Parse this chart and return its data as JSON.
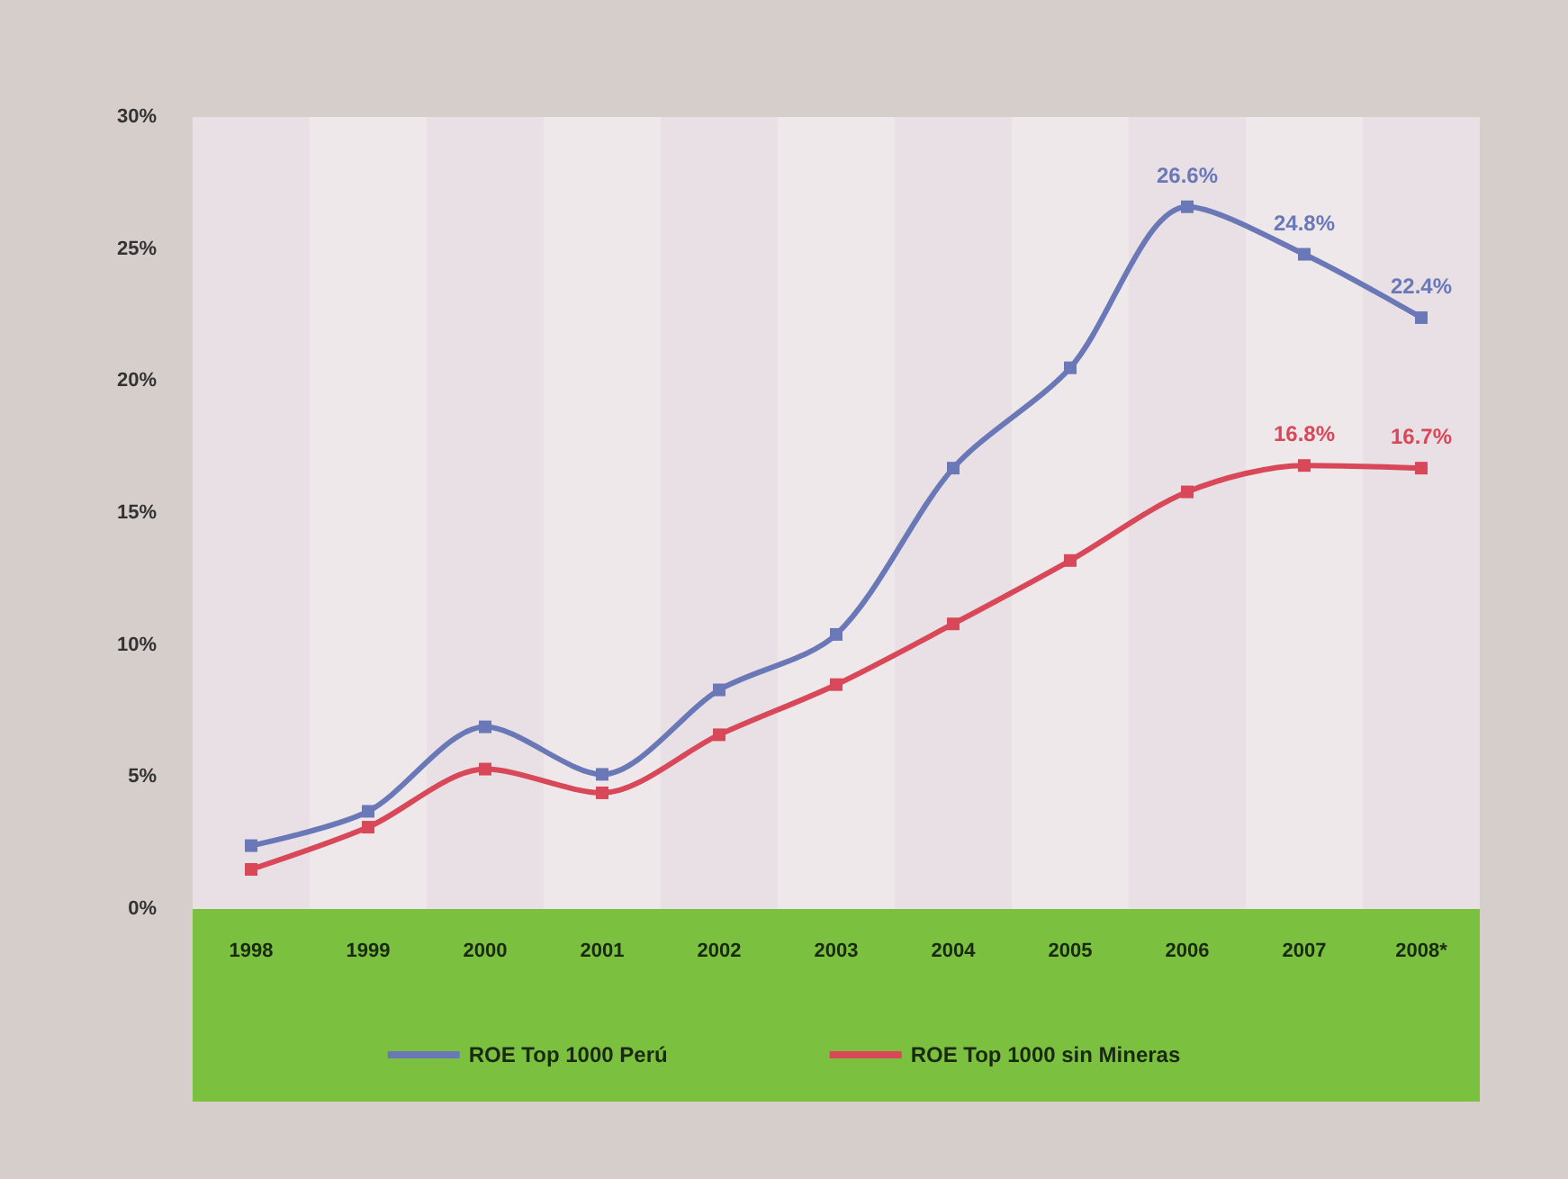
{
  "chart_data": {
    "type": "line",
    "categories": [
      "1998",
      "1999",
      "2000",
      "2001",
      "2002",
      "2003",
      "2004",
      "2005",
      "2006",
      "2007",
      "2008*"
    ],
    "ylim": [
      0,
      30
    ],
    "yticks": [
      {
        "value": 0,
        "label": "0%"
      },
      {
        "value": 5,
        "label": "5%"
      },
      {
        "value": 10,
        "label": "10%"
      },
      {
        "value": 15,
        "label": "15%"
      },
      {
        "value": 20,
        "label": "20%"
      },
      {
        "value": 25,
        "label": "25%"
      },
      {
        "value": 30,
        "label": "30%"
      }
    ],
    "series": [
      {
        "name": "ROE Top 1000 Perú",
        "color": "#6a78b8",
        "values": [
          2.4,
          3.7,
          6.9,
          5.1,
          8.3,
          10.4,
          16.7,
          20.5,
          26.6,
          24.8,
          22.4
        ],
        "value_labels": [
          null,
          null,
          null,
          null,
          null,
          null,
          null,
          null,
          "26.6%",
          "24.8%",
          "22.4%"
        ]
      },
      {
        "name": "ROE Top 1000 sin Mineras",
        "color": "#d84858",
        "values": [
          1.5,
          3.1,
          5.3,
          4.4,
          6.6,
          8.5,
          10.8,
          13.2,
          15.8,
          16.8,
          16.7
        ],
        "value_labels": [
          null,
          null,
          null,
          null,
          null,
          null,
          null,
          null,
          null,
          "16.8%",
          "16.7%"
        ]
      }
    ],
    "marker": "square",
    "grid": false,
    "legend": "bottom"
  }
}
